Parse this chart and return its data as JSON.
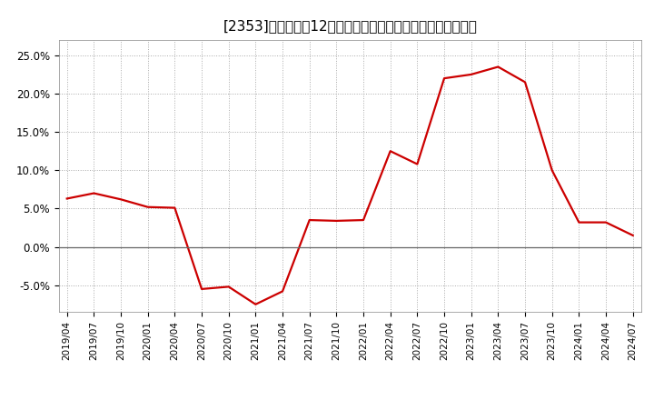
{
  "title": "[2353]　売上高の12か月移動合計の対前年同期増減率の推移",
  "line_color": "#cc0000",
  "background_color": "#ffffff",
  "plot_bg_color": "#ffffff",
  "grid_color": "#aaaaaa",
  "x_labels": [
    "2019/04",
    "2019/07",
    "2019/10",
    "2020/01",
    "2020/04",
    "2020/07",
    "2020/10",
    "2021/01",
    "2021/04",
    "2021/07",
    "2021/10",
    "2022/01",
    "2022/04",
    "2022/07",
    "2022/10",
    "2023/01",
    "2023/04",
    "2023/07",
    "2023/10",
    "2024/01",
    "2024/04",
    "2024/07"
  ],
  "y_values": [
    6.3,
    7.0,
    6.2,
    5.2,
    5.1,
    -5.5,
    -5.2,
    -7.5,
    -5.8,
    3.5,
    3.4,
    3.5,
    12.5,
    10.8,
    22.0,
    22.5,
    23.5,
    21.5,
    10.0,
    3.2,
    3.2,
    1.5
  ],
  "ylim": [
    -8.5,
    27
  ],
  "yticks": [
    -5.0,
    0.0,
    5.0,
    10.0,
    15.0,
    20.0,
    25.0
  ],
  "ytick_labels": [
    "-5.0%",
    "0.0%",
    "5.0%",
    "10.0%",
    "15.0%",
    "20.0%",
    "25.0%"
  ],
  "zero_line_color": "#666666",
  "line_width": 1.6,
  "title_fontsize": 11
}
